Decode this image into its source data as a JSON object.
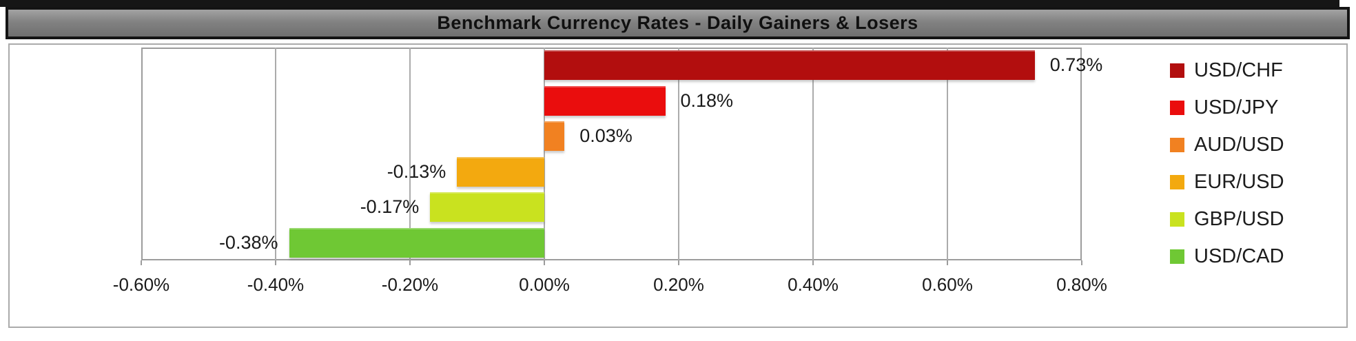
{
  "header": {
    "title": "Benchmark Currency Rates - Daily Gainers & Losers"
  },
  "chart_data": {
    "type": "bar",
    "orientation": "horizontal",
    "title": "Benchmark Currency Rates - Daily Gainers & Losers",
    "series": [
      {
        "name": "USD/CHF",
        "value": 0.73,
        "label": "0.73%",
        "color": "#B20E0E"
      },
      {
        "name": "USD/JPY",
        "value": 0.18,
        "label": "0.18%",
        "color": "#EA0D0D"
      },
      {
        "name": "AUD/USD",
        "value": 0.03,
        "label": "0.03%",
        "color": "#F18121"
      },
      {
        "name": "EUR/USD",
        "value": -0.13,
        "label": "-0.13%",
        "color": "#F3A90F"
      },
      {
        "name": "GBP/USD",
        "value": -0.17,
        "label": "-0.17%",
        "color": "#C9E21F"
      },
      {
        "name": "USD/CAD",
        "value": -0.38,
        "label": "-0.38%",
        "color": "#6FC834"
      }
    ],
    "xaxis": {
      "min": -0.6,
      "max": 0.8,
      "step": 0.2,
      "tick_labels": [
        "-0.60%",
        "-0.40%",
        "-0.20%",
        "0.00%",
        "0.20%",
        "0.40%",
        "0.60%",
        "0.80%"
      ]
    },
    "legend_position": "right",
    "grid": true,
    "colors": {
      "title_bar_background": "#7f7f7f",
      "title_text": "#101010",
      "gridline": "#ababab",
      "label_text": "#1a1a1a"
    }
  }
}
